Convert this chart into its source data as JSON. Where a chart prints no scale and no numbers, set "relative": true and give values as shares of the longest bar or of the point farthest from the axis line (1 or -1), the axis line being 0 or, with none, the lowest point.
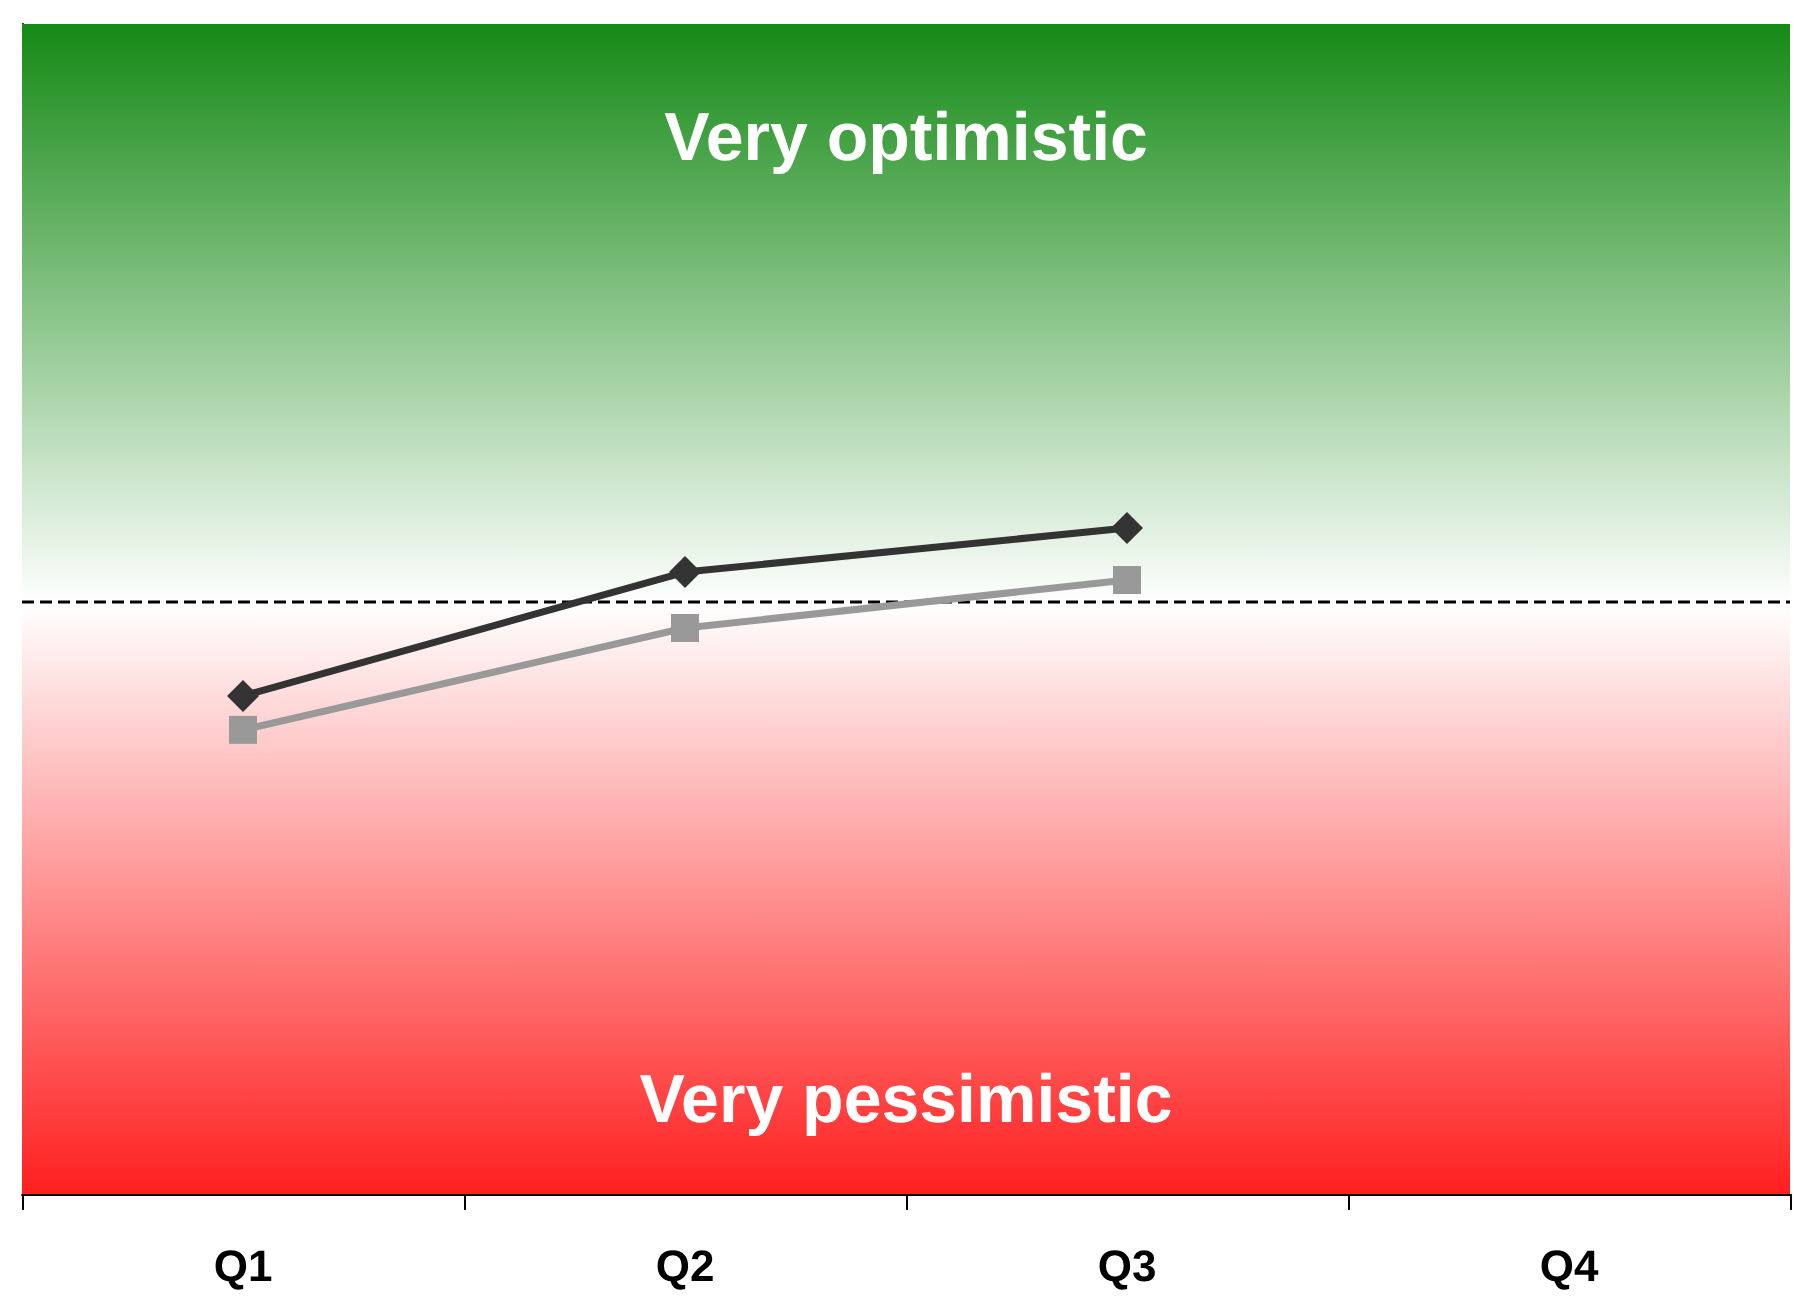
{
  "chart_data": {
    "type": "line",
    "relative": true,
    "categories": [
      "Q1",
      "Q2",
      "Q3",
      "Q4"
    ],
    "series": [
      {
        "color": "#333333",
        "marker": "diamond",
        "values": [
          0.748,
          0.934,
          1,
          null
        ]
      },
      {
        "color": "#999999",
        "marker": "square",
        "values": [
          0.697,
          0.85,
          0.922,
          null
        ]
      }
    ],
    "ref_lines": [
      {
        "axis": "y",
        "value": 0.886,
        "color": "#000000",
        "line_style": "dashed"
      }
    ],
    "bands": [
      {
        "axis": "y",
        "from": 0.886,
        "to": 1.757,
        "label": "Very optimistic",
        "color": "#158a15"
      },
      {
        "axis": "y",
        "from": 0,
        "to": 0.886,
        "label": "Very pessimistic",
        "color": "#ff1f1f"
      }
    ],
    "tick_labels": "x",
    "grid": false,
    "line_style": "solid"
  }
}
